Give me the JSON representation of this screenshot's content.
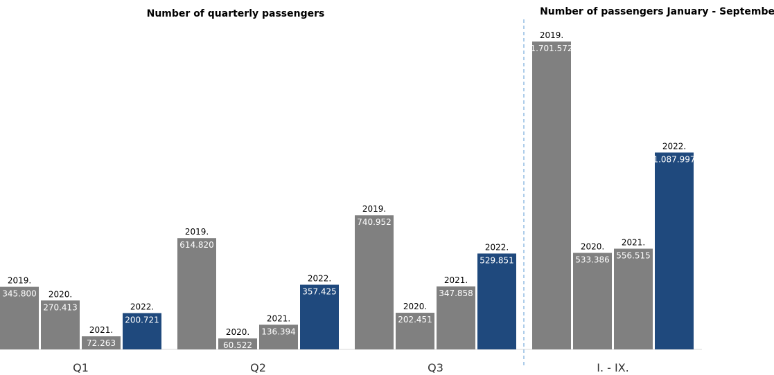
{
  "chart_data": [
    {
      "type": "bar",
      "title": "Number of quarterly passengers",
      "categories": [
        "Q1",
        "Q2",
        "Q3"
      ],
      "series": [
        {
          "name": "2019.",
          "label": "2019.",
          "values": [
            345800,
            614820,
            740952
          ],
          "labels": [
            "345.800",
            "614.820",
            "740.952"
          ]
        },
        {
          "name": "2020.",
          "label": "2020.",
          "values": [
            270413,
            60522,
            202451
          ],
          "labels": [
            "270.413",
            "60.522",
            "202.451"
          ]
        },
        {
          "name": "2021.",
          "label": "2021.",
          "values": [
            72263,
            136394,
            347858
          ],
          "labels": [
            "72.263",
            "136.394",
            "347.858"
          ]
        },
        {
          "name": "2022.",
          "label": "2022.",
          "values": [
            200721,
            357425,
            529851
          ],
          "labels": [
            "200.721",
            "357.425",
            "529.851"
          ]
        }
      ],
      "xlabel": "",
      "ylabel": "",
      "ylim": [
        0,
        1750000
      ],
      "grid": false
    },
    {
      "type": "bar",
      "title": "Number of passengers January - September",
      "categories": [
        "I. - IX."
      ],
      "series": [
        {
          "name": "2019.",
          "label": "2019.",
          "values": [
            1701572
          ],
          "labels": [
            "1.701.572"
          ]
        },
        {
          "name": "2020.",
          "label": "2020.",
          "values": [
            533386
          ],
          "labels": [
            "533.386"
          ]
        },
        {
          "name": "2021.",
          "label": "2021.",
          "values": [
            556515
          ],
          "labels": [
            "556.515"
          ]
        },
        {
          "name": "2022.",
          "label": "2022.",
          "values": [
            1087997
          ],
          "labels": [
            "1.087.997"
          ]
        }
      ],
      "xlabel": "",
      "ylabel": "",
      "ylim": [
        0,
        1750000
      ],
      "grid": false
    }
  ],
  "colors": {
    "previous_years": "#808080",
    "current_year": "#1f497d",
    "divider": "#5b9bd5",
    "axis": "#d9d9d9"
  }
}
